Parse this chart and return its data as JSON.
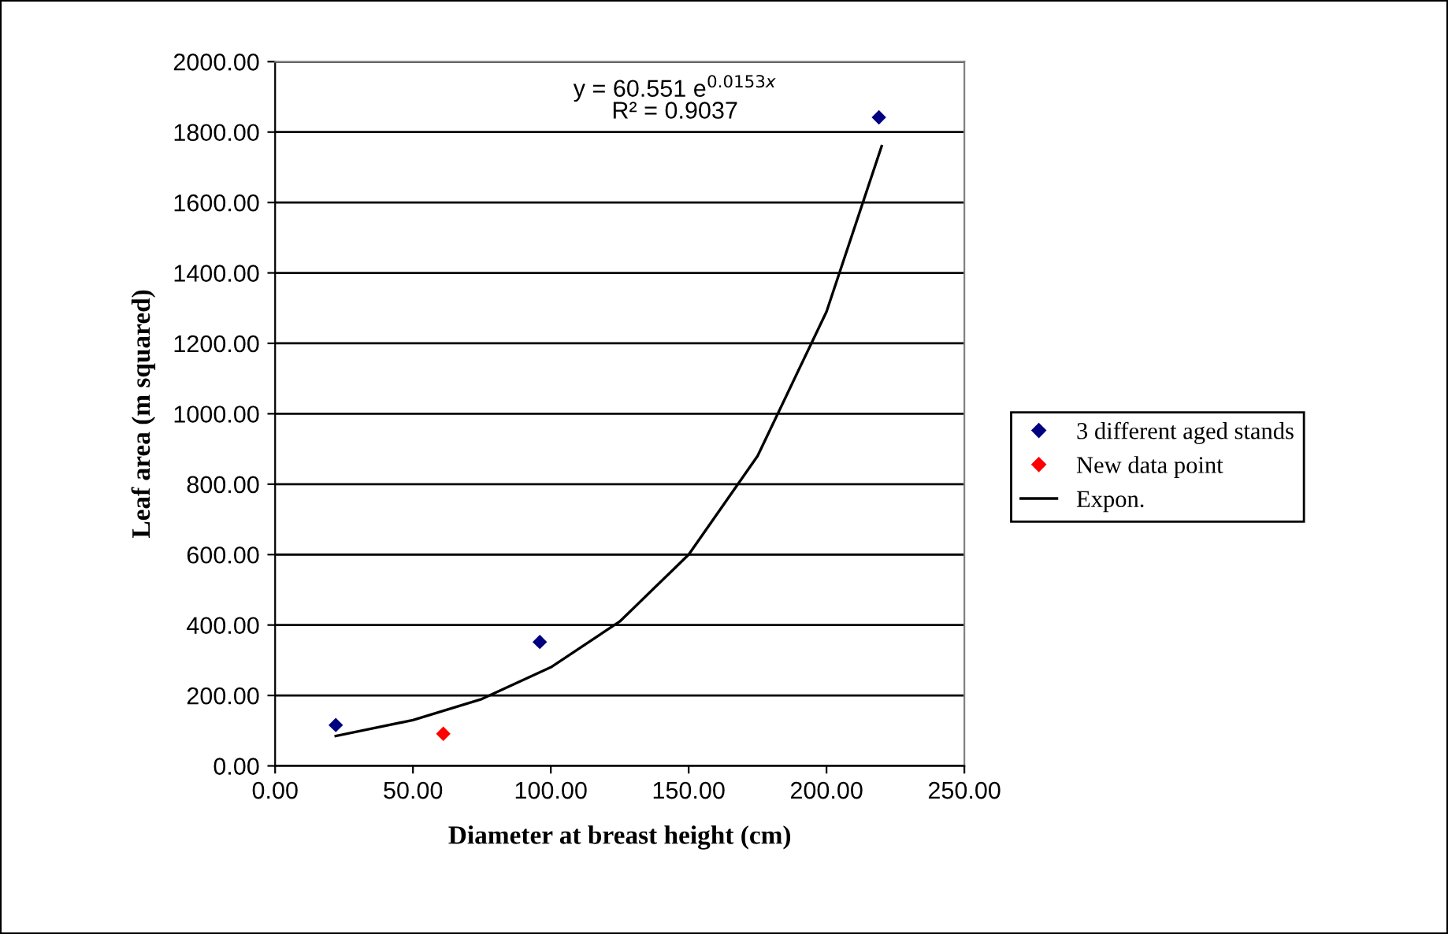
{
  "chart_data": {
    "type": "scatter",
    "xlabel": "Diameter at breast height (cm)",
    "ylabel": "Leaf area (m squared)",
    "xlim": [
      0,
      250
    ],
    "ylim": [
      0,
      2000
    ],
    "xticks": [
      {
        "value": 0,
        "label": "0.00"
      },
      {
        "value": 50,
        "label": "50.00"
      },
      {
        "value": 100,
        "label": "100.00"
      },
      {
        "value": 150,
        "label": "150.00"
      },
      {
        "value": 200,
        "label": "200.00"
      },
      {
        "value": 250,
        "label": "250.00"
      }
    ],
    "yticks": [
      {
        "value": 0,
        "label": "0.00"
      },
      {
        "value": 200,
        "label": "200.00"
      },
      {
        "value": 400,
        "label": "400.00"
      },
      {
        "value": 600,
        "label": "600.00"
      },
      {
        "value": 800,
        "label": "800.00"
      },
      {
        "value": 1000,
        "label": "1000.00"
      },
      {
        "value": 1200,
        "label": "1200.00"
      },
      {
        "value": 1400,
        "label": "1400.00"
      },
      {
        "value": 1600,
        "label": "1600.00"
      },
      {
        "value": 1800,
        "label": "1800.00"
      },
      {
        "value": 2000,
        "label": "2000.00"
      }
    ],
    "grid": "y",
    "legend": "right",
    "series": [
      {
        "name": "3 different aged stands",
        "marker": "diamond",
        "color": "#000080",
        "x": [
          22,
          96,
          219
        ],
        "values": [
          116,
          352,
          1842
        ]
      },
      {
        "name": "New data point",
        "marker": "diamond",
        "color": "#ff0000",
        "x": [
          61
        ],
        "values": [
          91
        ]
      },
      {
        "name": "Expon.",
        "type": "line",
        "color": "#000000",
        "x": [
          22,
          50,
          75,
          100,
          125,
          150,
          175,
          200,
          220
        ],
        "values": [
          85,
          130,
          190,
          280,
          410,
          600,
          880,
          1290,
          1760
        ]
      }
    ],
    "annotations": [
      {
        "text": "y = 60.551 e$^{0.0153x}$"
      },
      {
        "text": "R² = 0.9037"
      }
    ]
  }
}
